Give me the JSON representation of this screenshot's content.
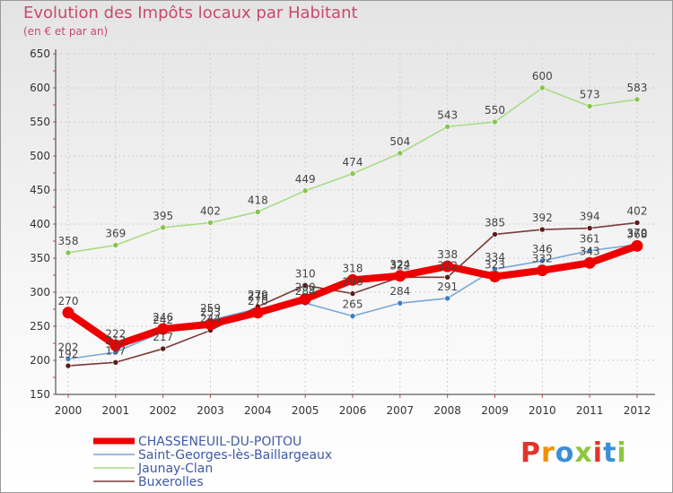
{
  "title": "Evolution des Impôts locaux par Habitant",
  "subtitle": "(en € et par an)",
  "logo": {
    "text": "Proxiti",
    "colors": [
      "#e0352b",
      "#f29100",
      "#3a8fd6",
      "#8cc63f",
      "#e0352b",
      "#3a8fd6",
      "#8cc63f"
    ]
  },
  "chart_data": {
    "type": "line",
    "x": [
      2000,
      2001,
      2002,
      2003,
      2004,
      2005,
      2006,
      2007,
      2008,
      2009,
      2010,
      2011,
      2012
    ],
    "ylim": [
      150,
      650
    ],
    "yticks": [
      150,
      200,
      250,
      300,
      350,
      400,
      450,
      500,
      550,
      600,
      650
    ],
    "grid": true,
    "legend_position": "bottom-left",
    "series": [
      {
        "name": "Saint-Georges-lès-Baillargeaux",
        "color": "#7aa6d9",
        "point_color": "#3a7fc2",
        "values": [
          202,
          212,
          242,
          259,
          276,
          284,
          265,
          284,
          291,
          334,
          346,
          361,
          370
        ],
        "labels": true
      },
      {
        "name": "Jaunay-Clan",
        "color": "#a9db85",
        "point_color": "#86c44f",
        "values": [
          358,
          369,
          395,
          402,
          418,
          449,
          474,
          504,
          543,
          550,
          600,
          573,
          583
        ],
        "labels": true
      },
      {
        "name": "Buxerolles",
        "color": "#7a3a3a",
        "point_color": "#5c1a1a",
        "values": [
          192,
          197,
          217,
          244,
          279,
          310,
          298,
          322,
          322,
          385,
          392,
          394,
          402
        ],
        "labels": true
      },
      {
        "name": "CHASSENEUIL-DU-POITOU",
        "color": "#ee0000",
        "point_color": "#ee0000",
        "values": [
          270,
          222,
          246,
          253,
          270,
          290,
          318,
          324,
          338,
          323,
          332,
          343,
          368
        ],
        "labels": true,
        "bold": true
      }
    ],
    "legend_order": [
      "CHASSENEUIL-DU-POITOU",
      "Saint-Georges-lès-Baillargeaux",
      "Jaunay-Clan",
      "Buxerolles"
    ]
  }
}
